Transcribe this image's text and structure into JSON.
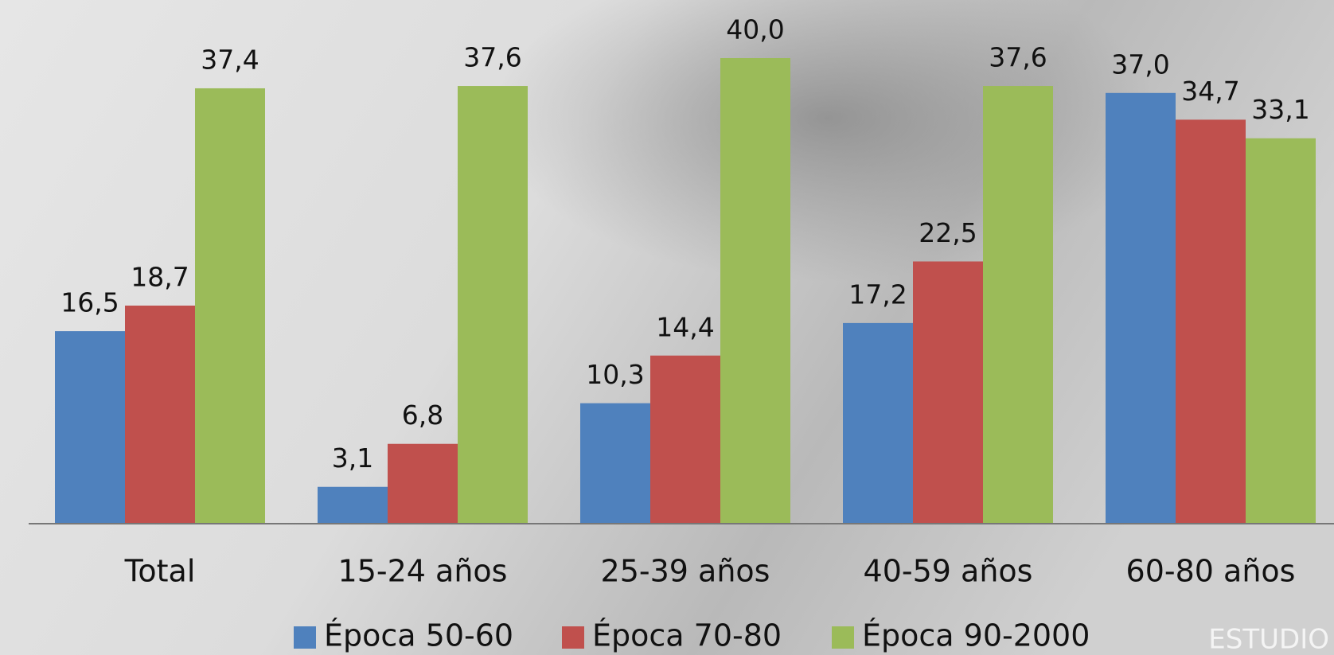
{
  "chart_data": {
    "type": "bar",
    "categories": [
      "Total",
      "15-24 años",
      "25-39 años",
      "40-59 años",
      "60-80 años"
    ],
    "series": [
      {
        "name": "Época 50-60",
        "color": "#4f81bd",
        "values": [
          16.5,
          3.1,
          10.3,
          17.2,
          37.0
        ],
        "value_labels": [
          "16,5",
          "3,1",
          "10,3",
          "17,2",
          "37,0"
        ]
      },
      {
        "name": "Época 70-80",
        "color": "#c0504d",
        "values": [
          18.7,
          6.8,
          14.4,
          22.5,
          34.7
        ],
        "value_labels": [
          "18,7",
          "6,8",
          "14,4",
          "22,5",
          "34,7"
        ]
      },
      {
        "name": "Época 90-2000",
        "color": "#9bbb59",
        "values": [
          37.4,
          37.6,
          40.0,
          37.6,
          33.1
        ],
        "value_labels": [
          "37,4",
          "37,6",
          "40,0",
          "37,6",
          "33,1"
        ]
      }
    ],
    "ylim": [
      0,
      40
    ],
    "legend": "bottom",
    "watermark": "ESTUDIO"
  }
}
